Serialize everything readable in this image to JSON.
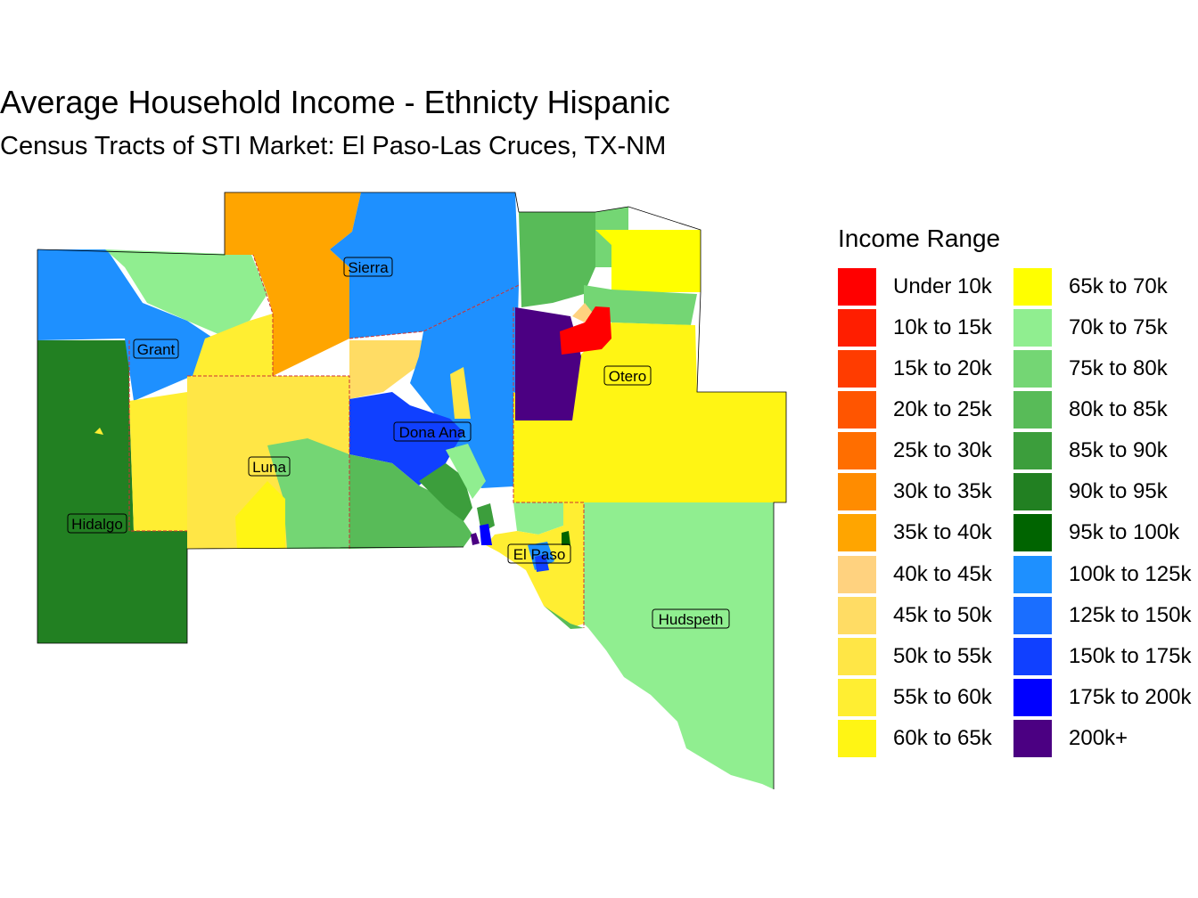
{
  "title": "Average Household Income - Ethnicty Hispanic",
  "subtitle": "Census Tracts of STI Market: El Paso-Las Cruces, TX-NM",
  "legend": {
    "title": "Income Range",
    "entries": [
      {
        "label": "Under 10k",
        "color": "#FF0000"
      },
      {
        "label": "10k to 15k",
        "color": "#FF1E00"
      },
      {
        "label": "15k to 20k",
        "color": "#FF3C00"
      },
      {
        "label": "20k to 25k",
        "color": "#FF5500"
      },
      {
        "label": "25k to 30k",
        "color": "#FF6E00"
      },
      {
        "label": "30k to 35k",
        "color": "#FF8C00"
      },
      {
        "label": "35k to 40k",
        "color": "#FFA500"
      },
      {
        "label": "40k to 45k",
        "color": "#FFD27F"
      },
      {
        "label": "45k to 50k",
        "color": "#FFDC64"
      },
      {
        "label": "50k to 55k",
        "color": "#FFE646"
      },
      {
        "label": "55k to 60k",
        "color": "#FFEE32"
      },
      {
        "label": "60k to 65k",
        "color": "#FFF514"
      },
      {
        "label": "65k to 70k",
        "color": "#FFFF00"
      },
      {
        "label": "70k to 75k",
        "color": "#90EE90"
      },
      {
        "label": "75k to 80k",
        "color": "#74D674"
      },
      {
        "label": "80k to 85k",
        "color": "#58BB58"
      },
      {
        "label": "85k to 90k",
        "color": "#3C9E3C"
      },
      {
        "label": "90k to 95k",
        "color": "#228022"
      },
      {
        "label": "95k to 100k",
        "color": "#006400"
      },
      {
        "label": "100k to 125k",
        "color": "#1E90FF"
      },
      {
        "label": "125k to 150k",
        "color": "#1A6EFF"
      },
      {
        "label": "150k to 175k",
        "color": "#1040FF"
      },
      {
        "label": "175k to 200k",
        "color": "#0000FF"
      },
      {
        "label": "200k+",
        "color": "#4B0082"
      }
    ]
  },
  "counties": [
    {
      "name": "Sierra"
    },
    {
      "name": "Grant"
    },
    {
      "name": "Otero"
    },
    {
      "name": "Dona Ana"
    },
    {
      "name": "Luna"
    },
    {
      "name": "Hidalgo"
    },
    {
      "name": "El Paso"
    },
    {
      "name": "Hudspeth"
    }
  ]
}
